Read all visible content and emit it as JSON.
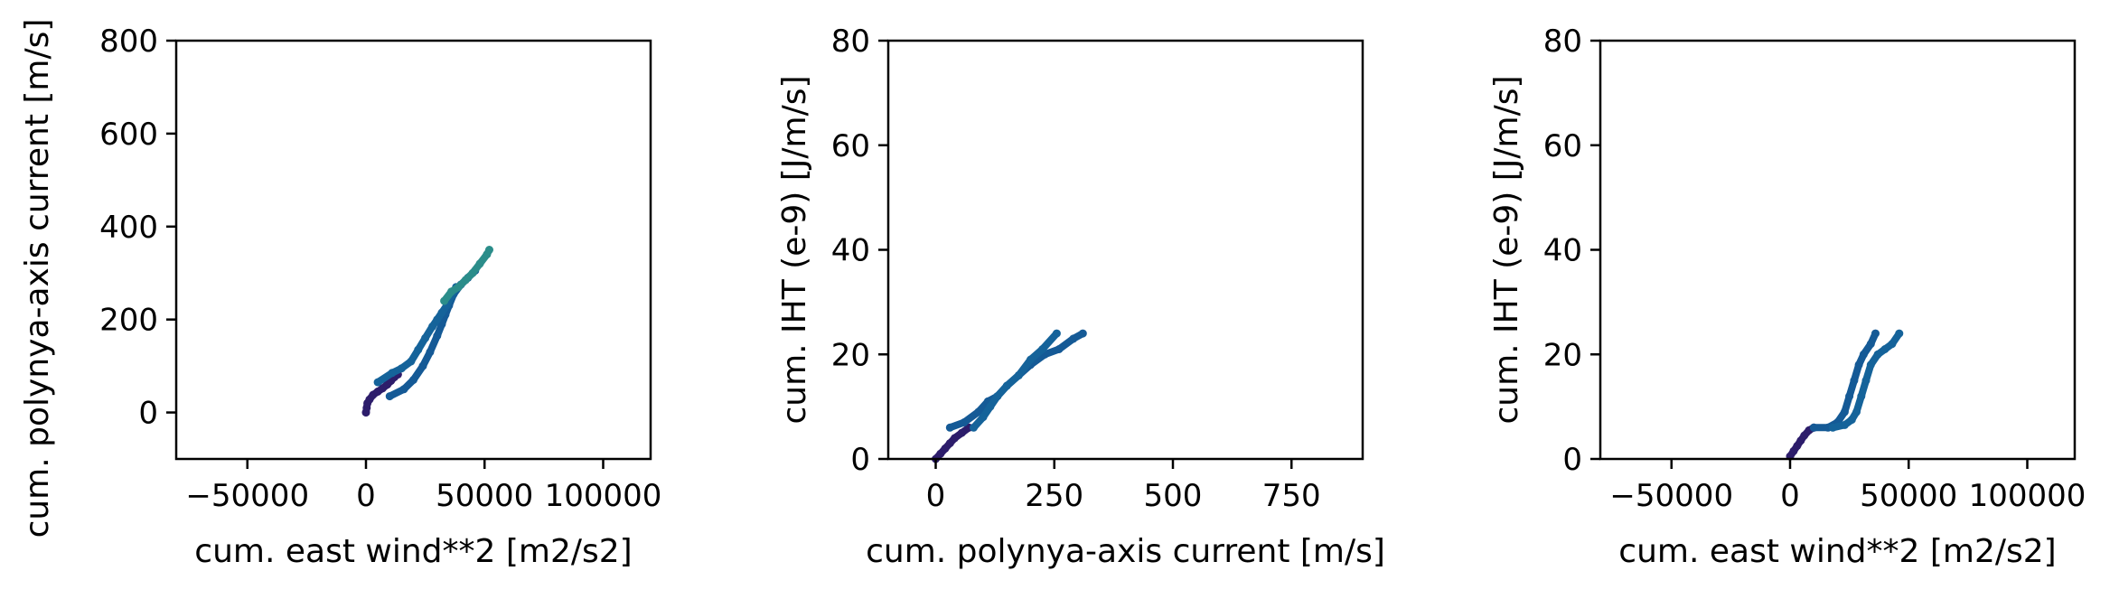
{
  "chart_data": [
    {
      "type": "scatter",
      "xlabel": "cum. east wind**2 [m2/s2]",
      "ylabel": "cum. polynya-axis current [m/s]",
      "xlim": [
        -80000,
        120000
      ],
      "ylim": [
        -100,
        800
      ],
      "xticks": [
        -50000,
        0,
        50000,
        100000
      ],
      "xtick_labels": [
        "−50000",
        "0",
        "50000",
        "100000"
      ],
      "yticks": [
        0,
        200,
        400,
        600,
        800
      ],
      "ytick_labels": [
        "0",
        "200",
        "400",
        "600",
        "800"
      ],
      "grid": false,
      "series": [
        {
          "color": "#2d1d6b",
          "x": [
            0,
            300,
            600,
            1500,
            3000,
            5000,
            7000,
            9000,
            10500,
            12000,
            13500
          ],
          "y": [
            0,
            10,
            20,
            28,
            38,
            45,
            52,
            60,
            68,
            76,
            82
          ]
        },
        {
          "color": "#155a96",
          "x": [
            10000,
            16000,
            20000,
            24000,
            27000,
            30000,
            32000,
            33500,
            35000,
            37000,
            40000,
            43000,
            46000
          ],
          "y": [
            35,
            50,
            70,
            100,
            130,
            165,
            190,
            210,
            230,
            255,
            275,
            290,
            305
          ]
        },
        {
          "color": "#15639a",
          "x": [
            5000,
            11000,
            15000,
            19000,
            22000,
            25000,
            28000,
            30000,
            32000,
            34000,
            36000,
            38000
          ],
          "y": [
            65,
            85,
            95,
            110,
            135,
            160,
            185,
            200,
            215,
            230,
            250,
            270
          ]
        },
        {
          "color": "#2b8d8a",
          "x": [
            33000,
            36000,
            39000,
            42000,
            45000,
            48000,
            51000,
            52000
          ],
          "y": [
            240,
            260,
            270,
            285,
            300,
            320,
            340,
            350
          ]
        }
      ]
    },
    {
      "type": "scatter",
      "xlabel": "cum. polynya-axis current [m/s]",
      "ylabel": "cum. IHT (e-9) [J/m/s]",
      "xlim": [
        -100,
        900
      ],
      "ylim": [
        0,
        80
      ],
      "xticks": [
        0,
        250,
        500,
        750
      ],
      "xtick_labels": [
        "0",
        "250",
        "500",
        "750"
      ],
      "yticks": [
        0,
        20,
        40,
        60,
        80
      ],
      "ytick_labels": [
        "0",
        "20",
        "40",
        "60",
        "80"
      ],
      "grid": false,
      "series": [
        {
          "color": "#2d1d6b",
          "x": [
            0,
            10,
            20,
            30,
            40,
            55,
            70
          ],
          "y": [
            0,
            1,
            2,
            3,
            4,
            5,
            6
          ]
        },
        {
          "color": "#155a96",
          "x": [
            30,
            60,
            90,
            110,
            130,
            150,
            175,
            200,
            230,
            260,
            290,
            310
          ],
          "y": [
            6,
            7,
            9,
            11,
            12,
            14,
            16,
            18,
            20,
            21,
            23,
            24
          ]
        },
        {
          "color": "#15639a",
          "x": [
            80,
            100,
            115,
            130,
            150,
            175,
            200,
            225,
            255
          ],
          "y": [
            6,
            8,
            10,
            12,
            14,
            16,
            19,
            21,
            24
          ]
        }
      ]
    },
    {
      "type": "scatter",
      "xlabel": "cum. east wind**2 [m2/s2]",
      "ylabel": "cum. IHT (e-9) [J/m/s]",
      "xlim": [
        -80000,
        120000
      ],
      "ylim": [
        0,
        80
      ],
      "xticks": [
        -50000,
        0,
        50000,
        100000
      ],
      "xtick_labels": [
        "−50000",
        "0",
        "50000",
        "100000"
      ],
      "yticks": [
        0,
        20,
        40,
        60,
        80
      ],
      "ytick_labels": [
        "0",
        "20",
        "40",
        "60",
        "80"
      ],
      "grid": false,
      "series": [
        {
          "color": "#2d1d6b",
          "x": [
            0,
            1500,
            3000,
            4500,
            6000,
            8000,
            10000
          ],
          "y": [
            0.5,
            1.5,
            2.5,
            3.5,
            4.5,
            5.5,
            6
          ]
        },
        {
          "color": "#155a96",
          "x": [
            10000,
            16000,
            20000,
            23000,
            25000,
            27000,
            29000,
            31000,
            34000,
            36000
          ],
          "y": [
            6,
            6,
            7,
            9,
            12,
            15,
            18,
            20,
            22,
            24
          ]
        },
        {
          "color": "#15639a",
          "x": [
            18000,
            23000,
            26000,
            28000,
            30000,
            32000,
            34000,
            37000,
            40000,
            43000,
            46000
          ],
          "y": [
            6,
            6.5,
            7.5,
            9,
            12,
            15,
            18,
            20,
            21,
            22,
            24
          ]
        }
      ]
    }
  ]
}
